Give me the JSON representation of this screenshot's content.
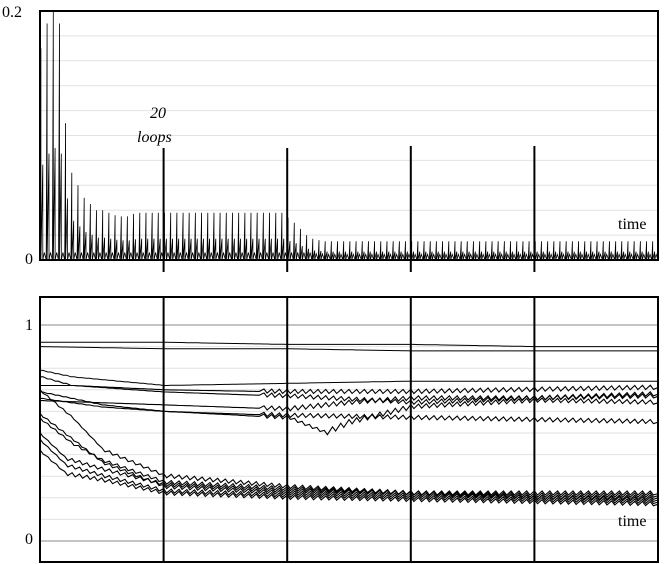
{
  "chart_data": [
    {
      "type": "line",
      "title": "",
      "xlabel": "time",
      "ylabel": "",
      "ylim": [
        0,
        0.2
      ],
      "y_ticks": [
        "0.2",
        "0"
      ],
      "grid": true,
      "annotation": {
        "line1": "20",
        "line2": "loops"
      },
      "loop_markers": [
        20,
        40,
        60,
        80
      ],
      "x_range": [
        0,
        100
      ],
      "series": [
        {
          "values_sampled_at_loops": [
            0.17,
            0.19,
            0.2,
            0.19,
            0.11,
            0.07,
            0.06,
            0.05,
            0.045,
            0.04,
            0.04,
            0.038,
            0.036,
            0.035,
            0.035,
            0.037,
            0.038,
            0.038,
            0.038,
            0.038,
            0.038,
            0.038,
            0.038,
            0.038,
            0.038,
            0.038,
            0.038,
            0.038,
            0.038,
            0.038,
            0.038,
            0.038,
            0.038,
            0.038,
            0.038,
            0.038,
            0.038,
            0.038,
            0.038,
            0.038,
            0.034,
            0.03,
            0.025,
            0.02,
            0.017,
            0.016,
            0.015,
            0.015,
            0.015,
            0.015,
            0.015,
            0.015,
            0.015,
            0.015,
            0.015,
            0.015,
            0.015,
            0.015,
            0.015,
            0.015,
            0.015,
            0.015,
            0.015,
            0.015,
            0.015,
            0.015,
            0.015,
            0.015,
            0.015,
            0.015,
            0.015,
            0.015,
            0.015,
            0.015,
            0.015,
            0.015,
            0.015,
            0.015,
            0.015,
            0.015,
            0.015,
            0.015,
            0.015,
            0.015,
            0.015,
            0.015,
            0.015,
            0.015,
            0.015,
            0.015,
            0.015,
            0.015,
            0.015,
            0.015,
            0.015,
            0.015,
            0.015,
            0.015,
            0.015,
            0.015
          ]
        }
      ]
    },
    {
      "type": "line",
      "title": "",
      "xlabel": "time",
      "ylabel": "",
      "ylim": [
        0,
        1
      ],
      "y_ticks": [
        "1",
        "0"
      ],
      "grid": true,
      "loop_markers": [
        20,
        40,
        60,
        80
      ],
      "x_range": [
        0,
        100
      ],
      "series": [
        {
          "x": [
            0,
            20,
            40,
            60,
            80,
            100
          ],
          "values": [
            0.92,
            0.92,
            0.91,
            0.91,
            0.9,
            0.9
          ]
        },
        {
          "x": [
            0,
            20,
            40,
            60,
            80,
            100
          ],
          "values": [
            0.9,
            0.89,
            0.89,
            0.88,
            0.88,
            0.88
          ]
        },
        {
          "x": [
            0,
            5,
            20,
            40,
            60,
            80,
            100
          ],
          "values": [
            0.79,
            0.76,
            0.72,
            0.73,
            0.74,
            0.74,
            0.74
          ]
        },
        {
          "x": [
            0,
            5,
            20,
            40,
            60,
            80,
            100
          ],
          "values": [
            0.72,
            0.72,
            0.7,
            0.69,
            0.69,
            0.7,
            0.71
          ]
        },
        {
          "x": [
            0,
            5,
            20,
            40,
            60,
            80,
            100
          ],
          "values": [
            0.76,
            0.72,
            0.69,
            0.67,
            0.64,
            0.66,
            0.68
          ]
        },
        {
          "x": [
            0,
            10,
            20,
            40,
            50,
            60,
            80,
            100
          ],
          "values": [
            0.65,
            0.64,
            0.63,
            0.61,
            0.64,
            0.66,
            0.66,
            0.67
          ]
        },
        {
          "x": [
            0,
            10,
            20,
            40,
            46,
            50,
            60,
            80,
            100
          ],
          "values": [
            0.66,
            0.62,
            0.6,
            0.57,
            0.5,
            0.55,
            0.62,
            0.65,
            0.64
          ]
        },
        {
          "x": [
            0,
            10,
            20,
            40,
            60,
            80,
            100
          ],
          "values": [
            0.69,
            0.63,
            0.6,
            0.58,
            0.57,
            0.56,
            0.55
          ]
        },
        {
          "x": [
            0,
            5,
            10,
            20,
            40,
            60,
            80,
            100
          ],
          "values": [
            0.69,
            0.57,
            0.42,
            0.3,
            0.25,
            0.22,
            0.22,
            0.22
          ]
        },
        {
          "x": [
            0,
            5,
            10,
            20,
            40,
            60,
            80,
            100
          ],
          "values": [
            0.56,
            0.45,
            0.37,
            0.27,
            0.24,
            0.22,
            0.2,
            0.2
          ]
        },
        {
          "x": [
            0,
            5,
            10,
            20,
            40,
            60,
            80,
            100
          ],
          "values": [
            0.58,
            0.47,
            0.36,
            0.25,
            0.22,
            0.21,
            0.2,
            0.19
          ]
        },
        {
          "x": [
            0,
            4,
            10,
            20,
            40,
            60,
            80,
            100
          ],
          "values": [
            0.49,
            0.38,
            0.33,
            0.26,
            0.23,
            0.22,
            0.21,
            0.21
          ]
        },
        {
          "x": [
            0,
            4,
            10,
            20,
            40,
            60,
            80,
            100
          ],
          "values": [
            0.46,
            0.35,
            0.3,
            0.23,
            0.21,
            0.2,
            0.19,
            0.18
          ]
        },
        {
          "x": [
            0,
            4,
            10,
            20,
            40,
            60,
            80,
            100
          ],
          "values": [
            0.41,
            0.31,
            0.28,
            0.22,
            0.2,
            0.19,
            0.18,
            0.17
          ]
        }
      ]
    }
  ]
}
